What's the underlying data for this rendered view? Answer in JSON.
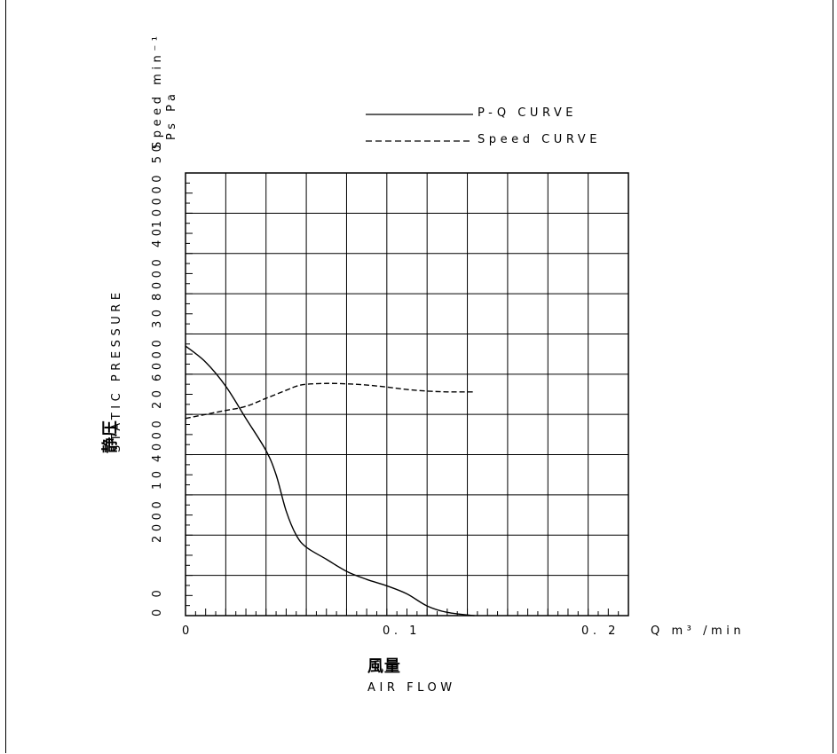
{
  "chart_data": {
    "type": "line",
    "title": "",
    "xlabel": "AIR FLOW",
    "xlabel_jp": "風量",
    "x_unit": "Q m³ /min",
    "ylabel": "STATIC PRESSURE",
    "ylabel_jp": "静圧",
    "y_unit_speed": "Speed min⁻¹",
    "y_unit_pressure": "Ps Pa",
    "xlim": [
      0,
      0.22
    ],
    "ylim_pressure": [
      0,
      55
    ],
    "ylim_speed": [
      0,
      11000
    ],
    "x_ticks": [
      {
        "value": 0,
        "label": "0"
      },
      {
        "value": 0.1,
        "label": "0. 1"
      },
      {
        "value": 0.2,
        "label": "0. 2"
      }
    ],
    "y_ticks": [
      {
        "pressure": 0,
        "speed": 0,
        "label": "0 0"
      },
      {
        "pressure": 10,
        "speed": 2000,
        "label": "2000 10"
      },
      {
        "pressure": 20,
        "speed": 4000,
        "label": "4000 20"
      },
      {
        "pressure": 30,
        "speed": 6000,
        "label": "6000 30"
      },
      {
        "pressure": 40,
        "speed": 8000,
        "label": "8000 40"
      },
      {
        "pressure": 50,
        "speed": 10000,
        "label": "10000 50"
      }
    ],
    "grid": true,
    "legend_position": "top-right",
    "series": [
      {
        "name": "P-Q CURVE",
        "axis": "pressure",
        "style": "solid",
        "x": [
          0,
          0.01,
          0.02,
          0.03,
          0.04,
          0.045,
          0.05,
          0.055,
          0.06,
          0.07,
          0.08,
          0.09,
          0.1,
          0.11,
          0.12,
          0.13,
          0.1435
        ],
        "y": [
          33.5,
          31.5,
          28.5,
          24.5,
          20.5,
          17.5,
          13,
          10,
          8.5,
          7,
          5.5,
          4.5,
          3.7,
          2.7,
          1.2,
          0.4,
          0
        ]
      },
      {
        "name": "Speed CURVE",
        "axis": "speed",
        "style": "dashed",
        "x": [
          0,
          0.01,
          0.02,
          0.03,
          0.04,
          0.05,
          0.055,
          0.06,
          0.07,
          0.08,
          0.09,
          0.1,
          0.11,
          0.12,
          0.13,
          0.1435
        ],
        "y": [
          4900,
          5000,
          5100,
          5200,
          5400,
          5600,
          5700,
          5750,
          5770,
          5760,
          5730,
          5680,
          5620,
          5580,
          5560,
          5560
        ]
      }
    ]
  }
}
